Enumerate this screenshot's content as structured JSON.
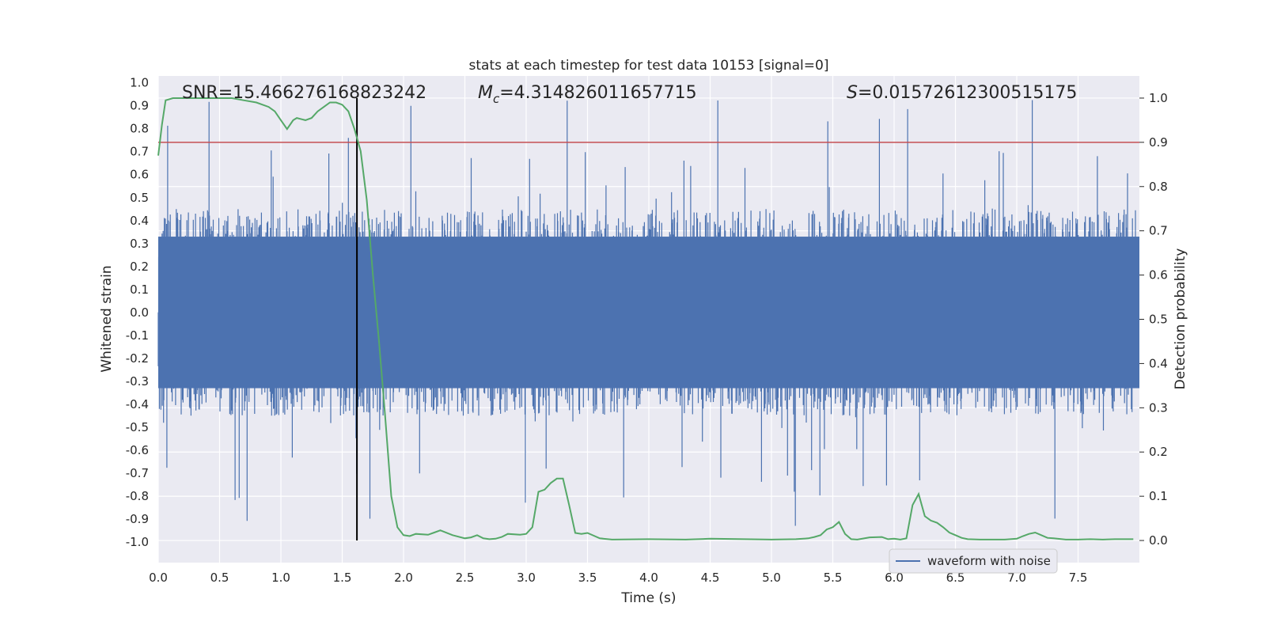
{
  "chart_data": {
    "type": "line",
    "title": "stats at each timestep for test data 10153 [signal=0]",
    "xlabel": "Time (s)",
    "ylabel": "Whitened strain",
    "y2label": "Detection probability",
    "xlim": [
      0.0,
      8.0
    ],
    "ylim": [
      -1.09,
      1.03
    ],
    "y2lim": [
      -0.05,
      1.05
    ],
    "x_ticks": [
      "0.0",
      "0.5",
      "1.0",
      "1.5",
      "2.0",
      "2.5",
      "3.0",
      "3.5",
      "4.0",
      "4.5",
      "5.0",
      "5.5",
      "6.0",
      "6.5",
      "7.0",
      "7.5"
    ],
    "y_ticks": [
      "1.0",
      "0.9",
      "0.8",
      "0.7",
      "0.6",
      "0.5",
      "0.4",
      "0.3",
      "0.2",
      "0.1",
      "0.0",
      "-0.1",
      "-0.2",
      "-0.3",
      "-0.4",
      "-0.5",
      "-0.6",
      "-0.7",
      "-0.8",
      "-0.9",
      "-1.0"
    ],
    "y2_ticks": [
      "1.0",
      "0.9",
      "0.8",
      "0.7",
      "0.6",
      "0.5",
      "0.4",
      "0.3",
      "0.2",
      "0.1",
      "0.0"
    ],
    "annotations": {
      "snr": "SNR=15.466276168823242",
      "mc_symbol": "M",
      "mc_sub": "c",
      "mc_value": "=4.314826011657715",
      "s_symbol": "S",
      "s_value": "=0.01572612300515175"
    },
    "legend": {
      "entries": [
        "waveform with noise"
      ],
      "location": "lower-right"
    },
    "threshold": {
      "probability": 0.9,
      "color": "#c44e52"
    },
    "marker_time": 1.62,
    "series": [
      {
        "name": "waveform with noise",
        "color": "#4c72b0",
        "band": {
          "typical_amplitude": 0.45,
          "max_amplitude": 0.93,
          "min_value": -0.93
        }
      },
      {
        "name": "detection probability",
        "color": "#55a868",
        "x": [
          0.0,
          0.03,
          0.06,
          0.12,
          0.2,
          0.3,
          0.4,
          0.5,
          0.6,
          0.7,
          0.8,
          0.9,
          0.95,
          1.0,
          1.05,
          1.1,
          1.13,
          1.2,
          1.25,
          1.3,
          1.35,
          1.4,
          1.45,
          1.5,
          1.55,
          1.6,
          1.65,
          1.7,
          1.75,
          1.8,
          1.85,
          1.9,
          1.95,
          2.0,
          2.05,
          2.1,
          2.2,
          2.25,
          2.3,
          2.4,
          2.5,
          2.55,
          2.6,
          2.65,
          2.7,
          2.75,
          2.8,
          2.85,
          2.95,
          3.0,
          3.05,
          3.1,
          3.15,
          3.2,
          3.25,
          3.3,
          3.35,
          3.4,
          3.45,
          3.5,
          3.6,
          3.7,
          4.0,
          4.3,
          4.5,
          5.0,
          5.2,
          5.3,
          5.35,
          5.4,
          5.45,
          5.5,
          5.55,
          5.6,
          5.65,
          5.7,
          5.8,
          5.9,
          5.95,
          6.0,
          6.05,
          6.1,
          6.15,
          6.2,
          6.25,
          6.3,
          6.35,
          6.4,
          6.45,
          6.5,
          6.55,
          6.6,
          6.7,
          6.9,
          7.0,
          7.05,
          7.1,
          7.15,
          7.2,
          7.25,
          7.3,
          7.4,
          7.5,
          7.6,
          7.7,
          7.8,
          7.95
        ],
        "values": [
          0.87,
          0.94,
          0.995,
          1.0,
          1.0,
          1.0,
          1.0,
          1.0,
          1.0,
          0.995,
          0.99,
          0.98,
          0.97,
          0.95,
          0.93,
          0.95,
          0.955,
          0.95,
          0.955,
          0.97,
          0.98,
          0.99,
          0.99,
          0.985,
          0.97,
          0.93,
          0.88,
          0.77,
          0.6,
          0.45,
          0.28,
          0.1,
          0.03,
          0.012,
          0.01,
          0.015,
          0.013,
          0.018,
          0.023,
          0.012,
          0.005,
          0.007,
          0.012,
          0.005,
          0.003,
          0.004,
          0.008,
          0.015,
          0.013,
          0.015,
          0.03,
          0.11,
          0.115,
          0.13,
          0.14,
          0.14,
          0.08,
          0.017,
          0.015,
          0.017,
          0.005,
          0.002,
          0.003,
          0.002,
          0.004,
          0.002,
          0.003,
          0.005,
          0.008,
          0.012,
          0.025,
          0.03,
          0.042,
          0.015,
          0.003,
          0.002,
          0.007,
          0.008,
          0.003,
          0.004,
          0.002,
          0.005,
          0.08,
          0.105,
          0.055,
          0.045,
          0.04,
          0.03,
          0.018,
          0.012,
          0.006,
          0.003,
          0.002,
          0.002,
          0.004,
          0.01,
          0.015,
          0.018,
          0.012,
          0.006,
          0.005,
          0.002,
          0.002,
          0.003,
          0.002,
          0.003,
          0.003
        ]
      }
    ]
  }
}
